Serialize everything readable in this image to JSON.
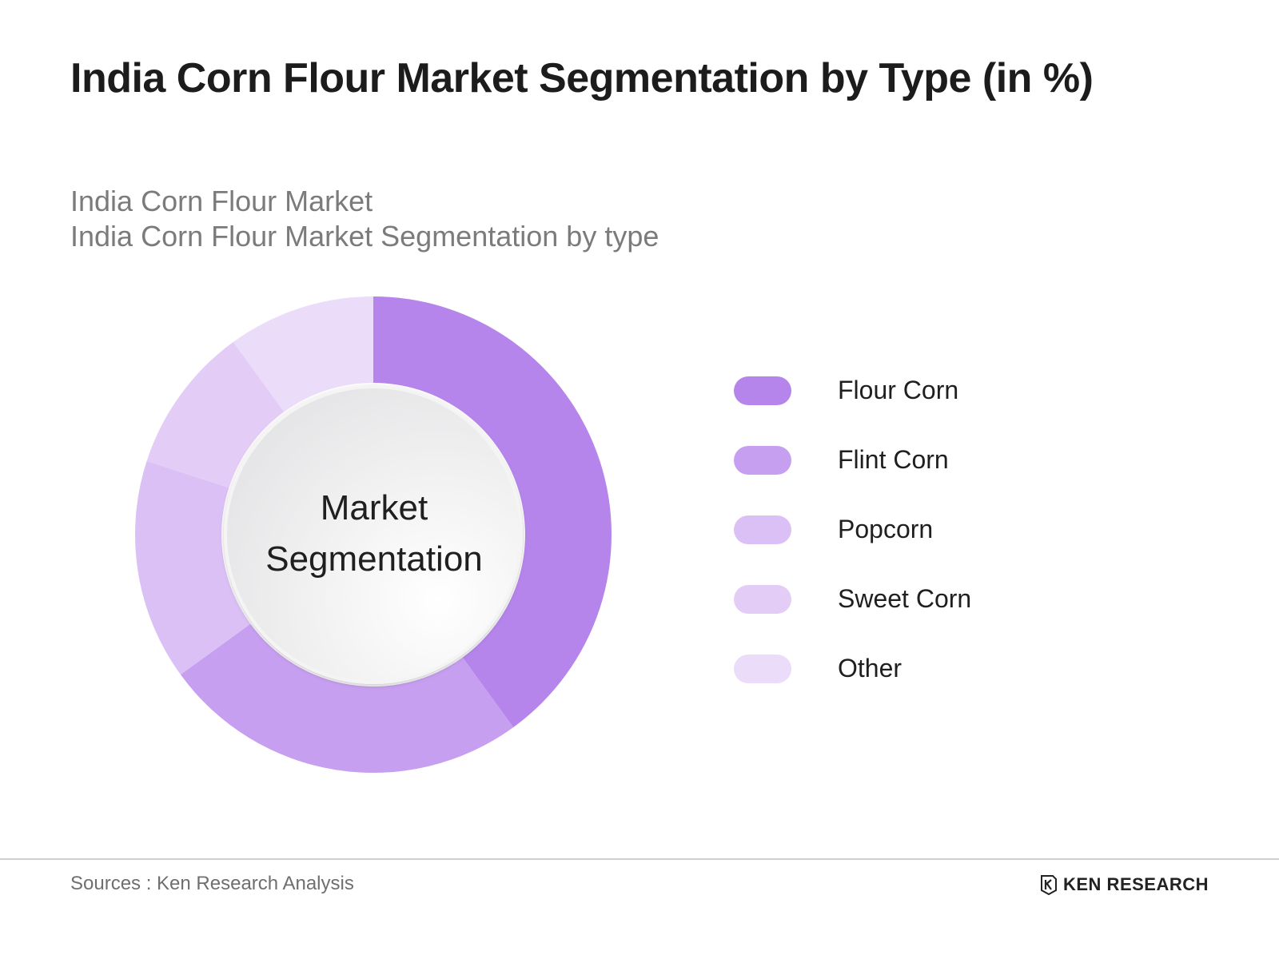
{
  "title": "India Corn Flour Market Segmentation by Type (in %)",
  "subtitle": {
    "line1": "India Corn Flour Market",
    "line2": "India Corn Flour Market Segmentation by type"
  },
  "chart_data": {
    "type": "pie",
    "variant": "donut",
    "center_label": [
      "Market",
      "Segmentation"
    ],
    "categories": [
      "Flour Corn",
      "Flint Corn",
      "Popcorn",
      "Sweet Corn",
      "Other"
    ],
    "values": [
      40,
      25,
      15,
      10,
      10
    ],
    "colors": [
      "#b585eb",
      "#c79ff0",
      "#dbc0f5",
      "#e3cdf7",
      "#ebdcf9"
    ],
    "legend_position": "right",
    "slice_labels_shown": false
  },
  "footer": {
    "source": "Sources : Ken Research Analysis",
    "brand": "KEN RESEARCH"
  }
}
